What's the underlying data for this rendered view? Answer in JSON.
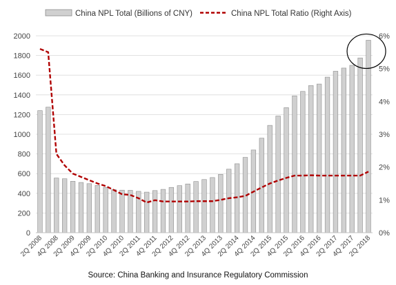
{
  "chart_data": {
    "type": "bar",
    "x_tick_labels": [
      "2Q 2008",
      "4Q 2008",
      "2Q 2009",
      "4Q 2009",
      "2Q 2010",
      "4Q 2010",
      "2Q 2011",
      "4Q 2011",
      "2Q 2012",
      "4Q 2012",
      "2Q 2013",
      "4Q 2013",
      "2Q 2014",
      "4Q 2014",
      "2Q 2015",
      "4Q 2015",
      "2Q 2016",
      "4Q 2016",
      "2Q 2017",
      "4Q 2017",
      "2Q 2018"
    ],
    "series": [
      {
        "name": "China NPL Total (Billions of CNY)",
        "type": "bar",
        "axis": "left",
        "color": "#d0d0d0",
        "values": [
          1240,
          1275,
          555,
          548,
          522,
          510,
          498,
          480,
          460,
          438,
          432,
          430,
          420,
          412,
          428,
          440,
          460,
          478,
          495,
          520,
          540,
          560,
          592,
          645,
          700,
          765,
          840,
          960,
          1090,
          1185,
          1270,
          1390,
          1435,
          1495,
          1510,
          1580,
          1640,
          1672,
          1700,
          1775,
          1955
        ]
      },
      {
        "name": "China NPL Total Ratio (Right Axis)",
        "type": "line",
        "axis": "right",
        "color": "#b00000",
        "values": [
          5.6,
          5.5,
          2.4,
          2.05,
          1.8,
          1.7,
          1.6,
          1.5,
          1.42,
          1.3,
          1.17,
          1.15,
          1.05,
          0.92,
          0.99,
          0.95,
          0.95,
          0.95,
          0.95,
          0.96,
          0.96,
          0.96,
          1.0,
          1.05,
          1.08,
          1.12,
          1.25,
          1.38,
          1.5,
          1.59,
          1.67,
          1.74,
          1.74,
          1.75,
          1.74,
          1.74,
          1.74,
          1.74,
          1.74,
          1.74,
          1.86
        ]
      }
    ],
    "y_left": {
      "min": 0,
      "max": 2000,
      "step": 200,
      "ticks": [
        "0",
        "200",
        "400",
        "600",
        "800",
        "1000",
        "1200",
        "1400",
        "1600",
        "1800",
        "2000"
      ]
    },
    "y_right": {
      "min": 0,
      "max": 6,
      "step": 1,
      "ticks": [
        "0%",
        "1%",
        "2%",
        "3%",
        "4%",
        "5%",
        "6%"
      ]
    },
    "grid": "horizontal",
    "legend_position": "top",
    "annotation": "circle around latest bar",
    "source": "Source: China Banking and Insurance Regulatory Commission"
  }
}
